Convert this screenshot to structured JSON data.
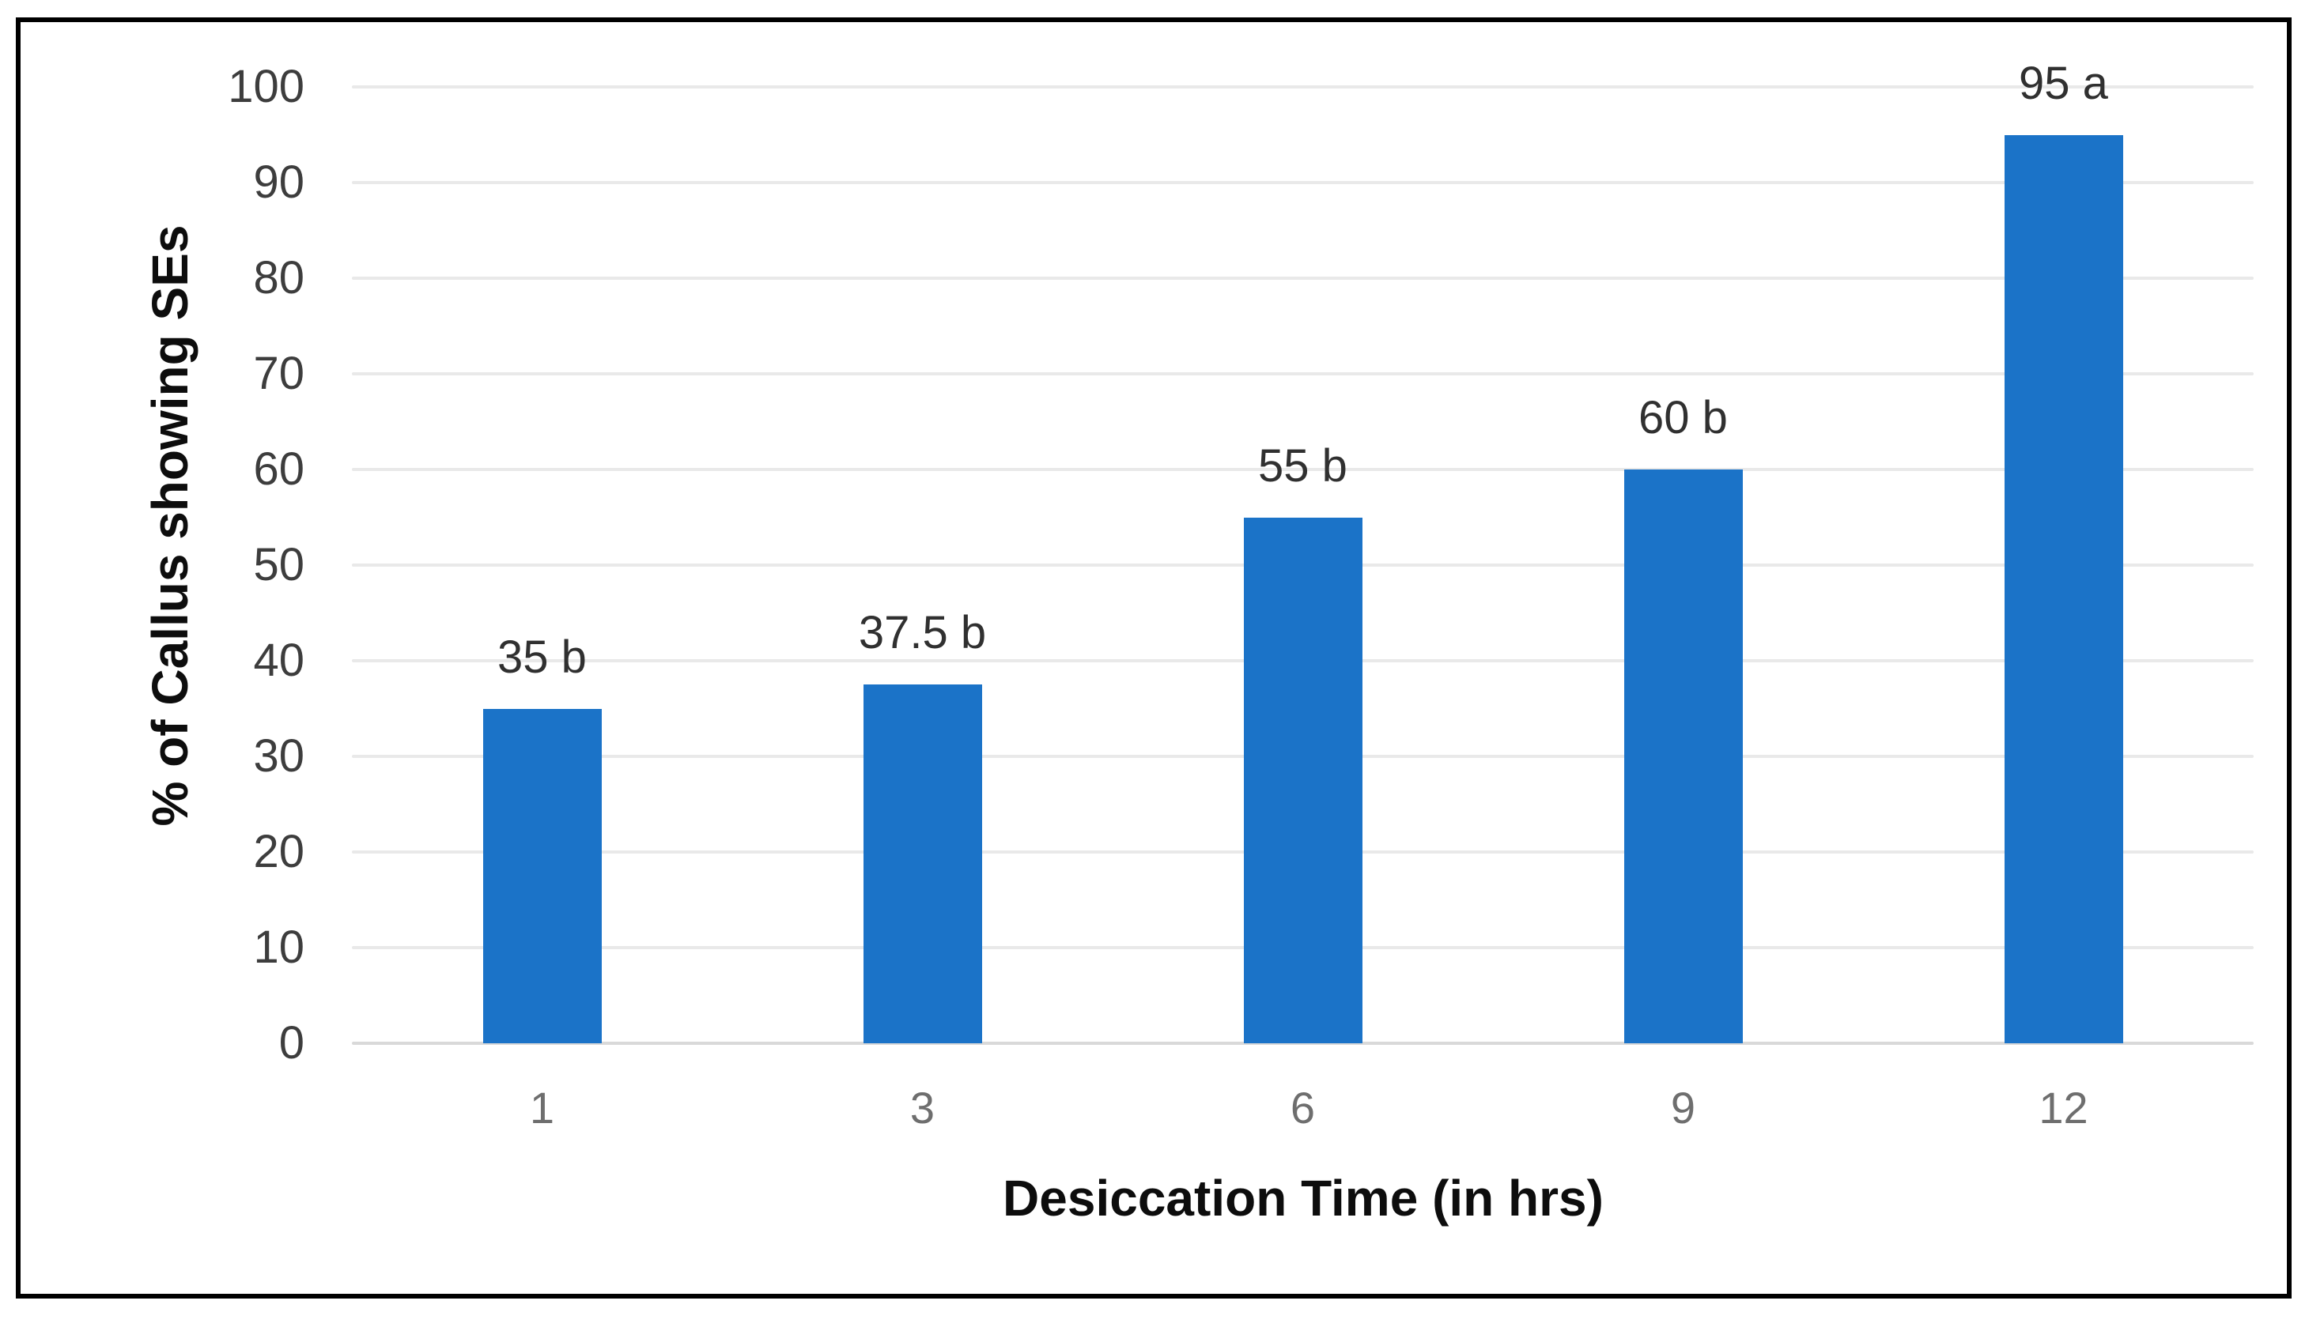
{
  "figure": {
    "background_color": "#ffffff",
    "frame_color": "#000000"
  },
  "chart_data": {
    "type": "bar",
    "xlabel": "Desiccation Time (in hrs)",
    "ylabel": "% of Callus showing SEs",
    "categories": [
      "1",
      "3",
      "6",
      "9",
      "12"
    ],
    "values": [
      35,
      37.5,
      55,
      60,
      95
    ],
    "bar_labels": [
      "35 b",
      "37.5 b",
      "55 b",
      "60 b",
      "95 a"
    ],
    "ylim": [
      0,
      100
    ],
    "yticks": [
      100,
      90,
      80,
      70,
      60,
      50,
      40,
      30,
      20,
      10,
      0
    ],
    "grid": true,
    "legend": "none",
    "colors": {
      "bar": "#1b73c8",
      "gridline": "#e9e9e9",
      "zero_line": "#d9d9d9",
      "ytick_label": "#3d3d3d",
      "xtick_label": "#6e6e6e",
      "data_label": "#303030",
      "axis_title": "#0d0d0d"
    }
  }
}
